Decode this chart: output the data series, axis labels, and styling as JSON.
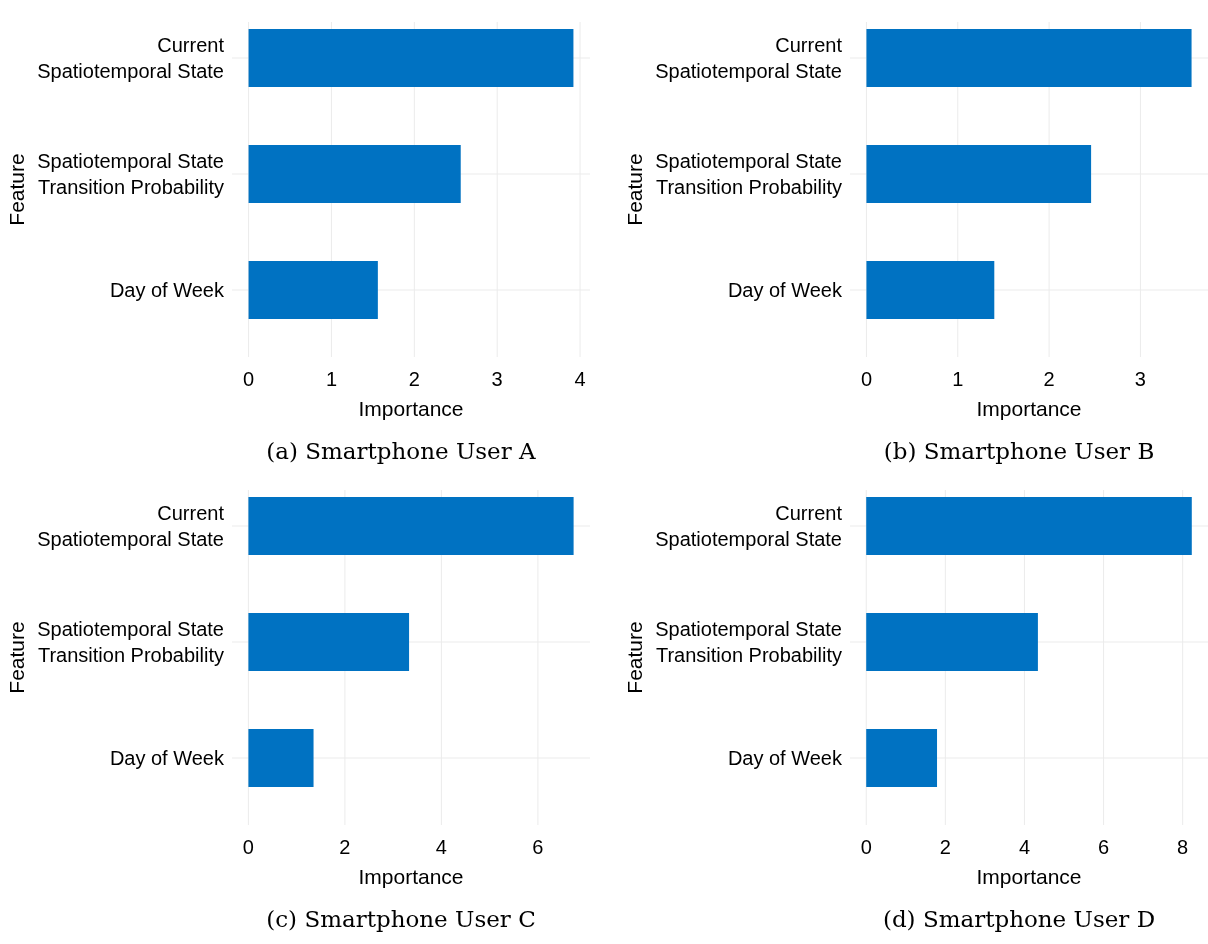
{
  "chart_data": [
    {
      "type": "bar",
      "orientation": "horizontal",
      "title": "(a) Smartphone User A",
      "xlabel": "Importance",
      "ylabel": "Feature",
      "categories": [
        "Current\nSpatiotemporal State",
        "Spatiotemporal State\nTransition Probability",
        "Day of Week"
      ],
      "values": [
        3.92,
        2.56,
        1.56
      ],
      "color": "#0072c2",
      "xlim": [
        -0.2,
        4.12
      ],
      "xticks": [
        0,
        1,
        2,
        3,
        4
      ],
      "grid": true
    },
    {
      "type": "bar",
      "orientation": "horizontal",
      "title": "(b) Smartphone User B",
      "xlabel": "Importance",
      "ylabel": "Feature",
      "categories": [
        "Current\nSpatiotemporal State",
        "Spatiotemporal State\nTransition Probability",
        "Day of Week"
      ],
      "values": [
        3.56,
        2.46,
        1.4
      ],
      "color": "#0072c2",
      "xlim": [
        -0.18,
        3.74
      ],
      "xticks": [
        0,
        1,
        2,
        3
      ],
      "grid": true
    },
    {
      "type": "bar",
      "orientation": "horizontal",
      "title": "(c) Smartphone User C",
      "xlabel": "Importance",
      "ylabel": "Feature",
      "categories": [
        "Current\nSpatiotemporal State",
        "Spatiotemporal State\nTransition Probability",
        "Day of Week"
      ],
      "values": [
        6.74,
        3.33,
        1.35
      ],
      "color": "#0072c2",
      "xlim": [
        -0.34,
        7.08
      ],
      "xticks": [
        0,
        2,
        4,
        6
      ],
      "grid": true
    },
    {
      "type": "bar",
      "orientation": "horizontal",
      "title": "(d) Smartphone User D",
      "xlabel": "Importance",
      "ylabel": "Feature",
      "categories": [
        "Current\nSpatiotemporal State",
        "Spatiotemporal State\nTransition Probability",
        "Day of Week"
      ],
      "values": [
        8.23,
        4.34,
        1.79
      ],
      "color": "#0072c2",
      "xlim": [
        -0.41,
        8.64
      ],
      "xticks": [
        0,
        2,
        4,
        6,
        8
      ],
      "grid": true
    }
  ]
}
